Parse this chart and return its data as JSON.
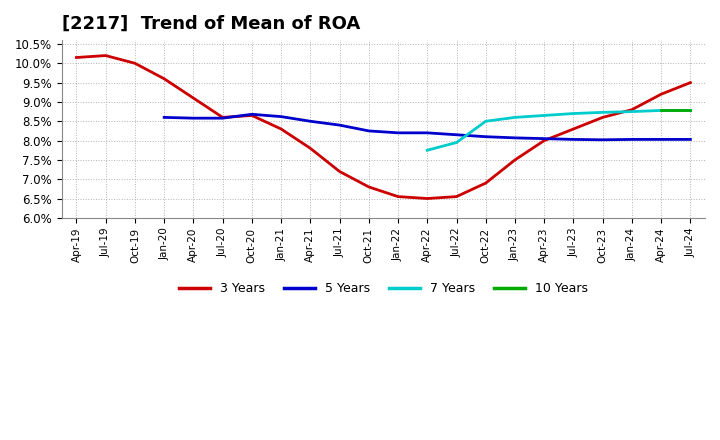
{
  "title": "[2217]  Trend of Mean of ROA",
  "ylim": [
    0.06,
    0.106
  ],
  "yticks": [
    0.06,
    0.065,
    0.07,
    0.075,
    0.08,
    0.085,
    0.09,
    0.095,
    0.1,
    0.105
  ],
  "xtick_labels": [
    "Apr-19",
    "Jul-19",
    "Oct-19",
    "Jan-20",
    "Apr-20",
    "Jul-20",
    "Oct-20",
    "Jan-21",
    "Apr-21",
    "Jul-21",
    "Oct-21",
    "Jan-22",
    "Apr-22",
    "Jul-22",
    "Oct-22",
    "Jan-23",
    "Apr-23",
    "Jul-23",
    "Oct-23",
    "Jan-24",
    "Apr-24",
    "Jul-24"
  ],
  "series": {
    "3 Years": {
      "color": "#cc0000",
      "dates": [
        "Apr-19",
        "Jul-19",
        "Oct-19",
        "Jan-20",
        "Apr-20",
        "Jul-20",
        "Oct-20",
        "Jan-21",
        "Apr-21",
        "Jul-21",
        "Oct-21",
        "Jan-22",
        "Apr-22",
        "Jul-22",
        "Oct-22",
        "Jan-23",
        "Apr-23",
        "Jul-23",
        "Oct-23",
        "Jan-24",
        "Apr-24",
        "Jul-24"
      ],
      "values": [
        0.1015,
        0.102,
        0.1,
        0.096,
        0.091,
        0.086,
        0.0865,
        0.083,
        0.078,
        0.072,
        0.068,
        0.0655,
        0.065,
        0.0655,
        0.069,
        0.075,
        0.08,
        0.083,
        0.086,
        0.088,
        0.092,
        0.095
      ]
    },
    "5 Years": {
      "color": "#0000cc",
      "dates": [
        "Jan-20",
        "Apr-20",
        "Jul-20",
        "Oct-20",
        "Jan-21",
        "Apr-21",
        "Jul-21",
        "Oct-21",
        "Jan-22",
        "Apr-22",
        "Jul-22",
        "Oct-22",
        "Jan-23",
        "Apr-23",
        "Jul-23",
        "Oct-23",
        "Jan-24",
        "Apr-24",
        "Jul-24"
      ],
      "values": [
        0.086,
        0.0858,
        0.0858,
        0.0868,
        0.0862,
        0.085,
        0.084,
        0.0825,
        0.082,
        0.082,
        0.0815,
        0.081,
        0.0807,
        0.0805,
        0.0803,
        0.0802,
        0.0803,
        0.0803,
        0.0803
      ]
    },
    "7 Years": {
      "color": "#00cccc",
      "dates": [
        "Apr-22",
        "Jul-22",
        "Oct-22",
        "Jan-23",
        "Apr-23",
        "Jul-23",
        "Oct-23",
        "Jan-24",
        "Apr-24",
        "Jul-24"
      ],
      "values": [
        0.0775,
        0.0795,
        0.085,
        0.086,
        0.0865,
        0.087,
        0.0873,
        0.0875,
        0.0878,
        0.0878
      ]
    },
    "10 Years": {
      "color": "#00aa00",
      "dates": [
        "Apr-24",
        "Jul-24"
      ],
      "values": [
        0.0878,
        0.0878
      ]
    }
  },
  "background_color": "#ffffff",
  "grid_color": "#aaaaaa",
  "title_fontsize": 13,
  "legend_items": [
    "3 Years",
    "5 Years",
    "7 Years",
    "10 Years"
  ],
  "legend_colors": [
    "#cc0000",
    "#0000cc",
    "#00cccc",
    "#00aa00"
  ]
}
